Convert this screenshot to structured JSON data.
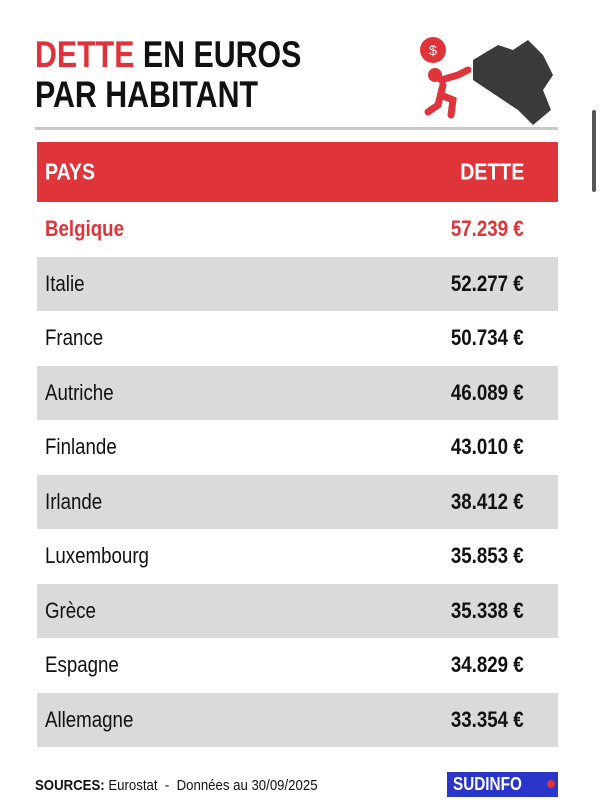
{
  "header": {
    "title_highlight": "DETTE",
    "title_rest": "EN EUROS",
    "title_line2": "PAR HABITANT"
  },
  "table": {
    "columns": [
      "PAYS",
      "DETTE"
    ],
    "rows": [
      [
        "Belgique",
        "57.239 €"
      ],
      [
        "Italie",
        "52.277 €"
      ],
      [
        "France",
        "50.734 €"
      ],
      [
        "Autriche",
        "46.089 €"
      ],
      [
        "Finlande",
        "43.010 €"
      ],
      [
        "Irlande",
        "38.412 €"
      ],
      [
        "Luxembourg",
        "35.853 €"
      ],
      [
        "Grèce",
        "35.338 €"
      ],
      [
        "Espagne",
        "34.829 €"
      ],
      [
        "Allemagne",
        "33.354 €"
      ]
    ]
  },
  "footer": {
    "sources_label": "SOURCES:",
    "source": "Eurostat",
    "separator": "-",
    "date_note": "Données au 30/09/2025",
    "logo": "SUDINFO"
  }
}
